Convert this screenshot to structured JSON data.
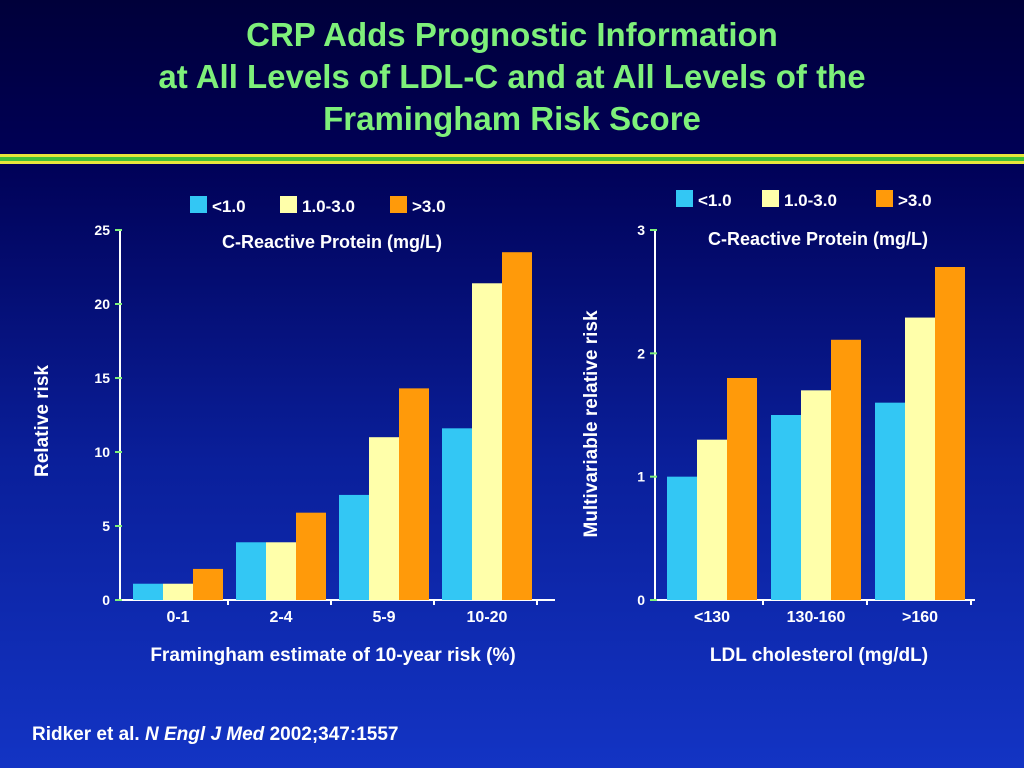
{
  "slide": {
    "title_lines": [
      "CRP Adds Prognostic Information",
      "at All Levels of LDL-C and at All Levels of the",
      "Framingham Risk Score"
    ],
    "citation": {
      "authors": "Ridker et al.",
      "journal": "N Engl J Med",
      "ref": "2002;347:1557"
    }
  },
  "colors": {
    "title": "#7ef07a",
    "series": [
      "#33c7f4",
      "#ffffaa",
      "#ff9a0a"
    ]
  },
  "chart_data": [
    {
      "type": "bar",
      "legend_title": "C-Reactive Protein (mg/L)",
      "legend_position": "top",
      "xlabel": "Framingham estimate of 10-year risk (%)",
      "ylabel": "Relative risk",
      "categories": [
        "0-1",
        "2-4",
        "5-9",
        "10-20"
      ],
      "ylim": [
        0,
        25
      ],
      "yticks": [
        0,
        5,
        10,
        15,
        20,
        25
      ],
      "grid": false,
      "series": [
        {
          "name": "<1.0",
          "values": [
            1.1,
            3.9,
            7.1,
            11.6
          ]
        },
        {
          "name": "1.0-3.0",
          "values": [
            1.1,
            3.9,
            11.0,
            21.4
          ]
        },
        {
          "name": ">3.0",
          "values": [
            2.1,
            5.9,
            14.3,
            23.5
          ]
        }
      ]
    },
    {
      "type": "bar",
      "legend_title": "C-Reactive Protein (mg/L)",
      "legend_position": "top",
      "xlabel": "LDL cholesterol (mg/dL)",
      "ylabel": "Multivariable relative risk",
      "categories": [
        "<130",
        "130-160",
        ">160"
      ],
      "ylim": [
        0,
        3
      ],
      "yticks": [
        0,
        1,
        2,
        3
      ],
      "grid": false,
      "series": [
        {
          "name": "<1.0",
          "values": [
            1.0,
            1.5,
            1.6
          ]
        },
        {
          "name": "1.0-3.0",
          "values": [
            1.3,
            1.7,
            2.29
          ]
        },
        {
          "name": ">3.0",
          "values": [
            1.8,
            2.11,
            2.7
          ]
        }
      ]
    }
  ]
}
